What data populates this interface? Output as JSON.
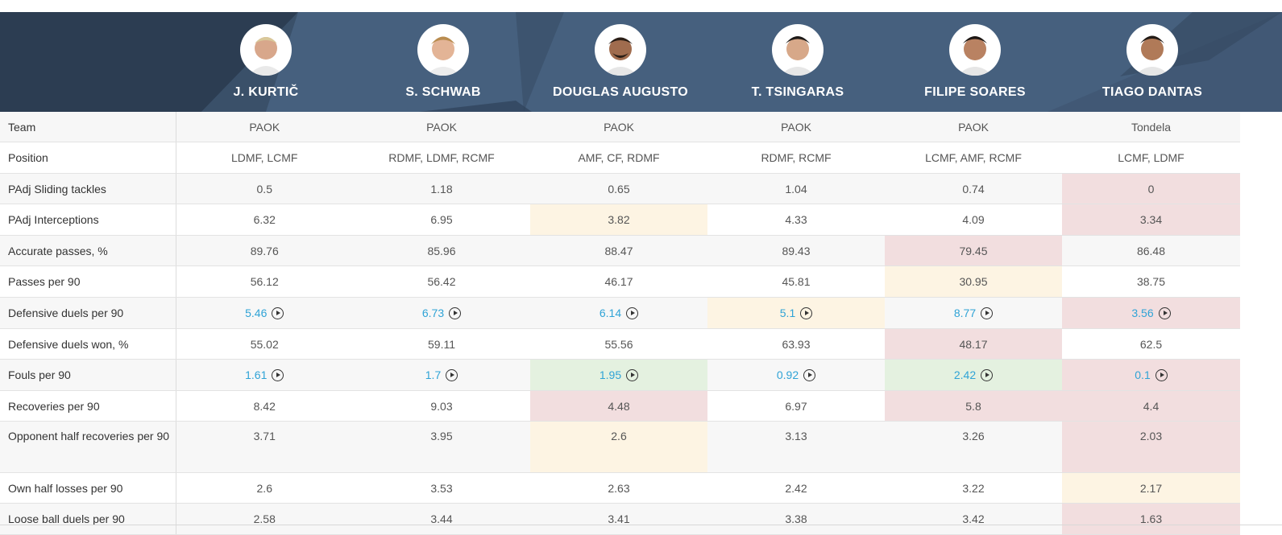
{
  "players": [
    {
      "name": "J. KURTIČ"
    },
    {
      "name": "S. SCHWAB"
    },
    {
      "name": "DOUGLAS AUGUSTO"
    },
    {
      "name": "T. TSINGARAS"
    },
    {
      "name": "FILIPE SOARES"
    },
    {
      "name": "TIAGO DANTAS"
    }
  ],
  "colors": {
    "header_bg": "#46607e",
    "link": "#2fa3d6",
    "red": "#f2dedf",
    "yellow": "#fdf4e3",
    "green": "#e4f1e0"
  },
  "rows": [
    {
      "label": "Team",
      "values": [
        "PAOK",
        "PAOK",
        "PAOK",
        "PAOK",
        "PAOK",
        "Tondela"
      ],
      "hl": [
        "",
        "",
        "",
        "",
        "",
        ""
      ]
    },
    {
      "label": "Position",
      "values": [
        "LDMF, LCMF",
        "RDMF, LDMF, RCMF",
        "AMF, CF, RDMF",
        "RDMF, RCMF",
        "LCMF, AMF, RCMF",
        "LCMF, LDMF"
      ],
      "hl": [
        "",
        "",
        "",
        "",
        "",
        ""
      ]
    },
    {
      "label": "PAdj Sliding tackles",
      "values": [
        "0.5",
        "1.18",
        "0.65",
        "1.04",
        "0.74",
        "0"
      ],
      "hl": [
        "",
        "",
        "",
        "",
        "",
        "red"
      ]
    },
    {
      "label": "PAdj Interceptions",
      "values": [
        "6.32",
        "6.95",
        "3.82",
        "4.33",
        "4.09",
        "3.34"
      ],
      "hl": [
        "",
        "",
        "yellow",
        "",
        "",
        "red"
      ]
    },
    {
      "label": "Accurate passes, %",
      "values": [
        "89.76",
        "85.96",
        "88.47",
        "89.43",
        "79.45",
        "86.48"
      ],
      "hl": [
        "",
        "",
        "",
        "",
        "red",
        ""
      ]
    },
    {
      "label": "Passes per 90",
      "values": [
        "56.12",
        "56.42",
        "46.17",
        "45.81",
        "30.95",
        "38.75"
      ],
      "hl": [
        "",
        "",
        "",
        "",
        "yellow",
        ""
      ]
    },
    {
      "label": "Defensive duels per 90",
      "values": [
        "5.46",
        "6.73",
        "6.14",
        "5.1",
        "8.77",
        "3.56"
      ],
      "hl": [
        "",
        "",
        "",
        "yellow",
        "",
        "red"
      ],
      "link": true
    },
    {
      "label": "Defensive duels won, %",
      "values": [
        "55.02",
        "59.11",
        "55.56",
        "63.93",
        "48.17",
        "62.5"
      ],
      "hl": [
        "",
        "",
        "",
        "",
        "red",
        ""
      ]
    },
    {
      "label": "Fouls per 90",
      "values": [
        "1.61",
        "1.7",
        "1.95",
        "0.92",
        "2.42",
        "0.1"
      ],
      "hl": [
        "",
        "",
        "green",
        "",
        "green",
        "red"
      ],
      "link": true
    },
    {
      "label": "Recoveries per 90",
      "values": [
        "8.42",
        "9.03",
        "4.48",
        "6.97",
        "5.8",
        "4.4"
      ],
      "hl": [
        "",
        "",
        "red",
        "",
        "red",
        "red"
      ]
    },
    {
      "label": "Opponent half recoveries per 90",
      "values": [
        "3.71",
        "3.95",
        "2.6",
        "3.13",
        "3.26",
        "2.03"
      ],
      "hl": [
        "",
        "",
        "yellow",
        "",
        "",
        "red"
      ]
    },
    {
      "label": "Own half losses per 90",
      "values": [
        "2.6",
        "3.53",
        "2.63",
        "2.42",
        "3.22",
        "2.17"
      ],
      "hl": [
        "",
        "",
        "",
        "",
        "",
        "yellow"
      ]
    },
    {
      "label": "Loose ball duels per 90",
      "values": [
        "2.58",
        "3.44",
        "3.41",
        "3.38",
        "3.42",
        "1.63"
      ],
      "hl": [
        "",
        "",
        "",
        "",
        "",
        "red"
      ]
    }
  ]
}
